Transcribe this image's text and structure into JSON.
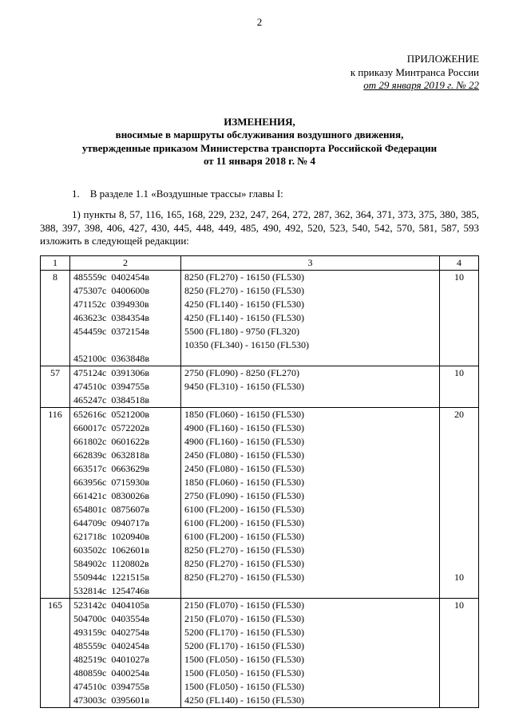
{
  "pageNumber": "2",
  "appendix": {
    "title": "ПРИЛОЖЕНИЕ",
    "sub": "к приказу Минтранса России",
    "dateLine": "от 29 января 2019 г. № 22"
  },
  "mainTitle": {
    "t1": "ИЗМЕНЕНИЯ,",
    "t2": "вносимые в маршруты обслуживания воздушного движения,",
    "t3": "утвержденные приказом Министерства транспорта Российской Федерации",
    "t4": "от 11 января 2018 г. № 4"
  },
  "para1": "1. В разделе 1.1 «Воздушные трассы» главы I:",
  "para2": "1) пункты 8, 57, 116, 165, 168, 229, 232, 247, 264, 272, 287, 362, 364, 371, 373, 375, 380, 385, 388, 397, 398, 406, 427, 430, 445, 448, 449, 485, 490, 492, 520, 523, 540, 542, 570, 581, 587, 593 изложить в следующей редакции:",
  "tableHeader": [
    "1",
    "2",
    "3",
    "4"
  ],
  "groups": [
    {
      "id": "8",
      "c4": "10",
      "rows": [
        {
          "c2": "485559с  0402454в",
          "c3": "8250 (FL270) - 16150 (FL530)"
        },
        {
          "c2": "475307с  0400600в",
          "c3": "8250 (FL270) - 16150 (FL530)"
        },
        {
          "c2": "471152с  0394930в",
          "c3": "4250 (FL140) - 16150 (FL530)"
        },
        {
          "c2": "463623с  0384354в",
          "c3": "4250 (FL140) - 16150 (FL530)"
        },
        {
          "c2": "454459с  0372154в",
          "c3": "5500 (FL180) - 9750 (FL320)"
        },
        {
          "c2": "",
          "c3": "10350 (FL340) - 16150 (FL530)"
        },
        {
          "c2": "452100с  0363848в",
          "c3": ""
        }
      ]
    },
    {
      "id": "57",
      "c4": "10",
      "rows": [
        {
          "c2": "475124с  0391306в",
          "c3": "2750 (FL090) - 8250 (FL270)"
        },
        {
          "c2": "474510с  0394755в",
          "c3": "9450 (FL310) - 16150 (FL530)"
        },
        {
          "c2": "465247с  0384518в",
          "c3": ""
        }
      ]
    },
    {
      "id": "116",
      "c4": "20",
      "rows": [
        {
          "c2": "652616с  0521200в",
          "c3": "1850 (FL060) - 16150 (FL530)"
        },
        {
          "c2": "660017с  0572202в",
          "c3": "4900 (FL160) - 16150 (FL530)"
        },
        {
          "c2": "661802с  0601622в",
          "c3": "4900 (FL160) - 16150 (FL530)"
        },
        {
          "c2": "662839с  0632818в",
          "c3": "2450 (FL080) - 16150 (FL530)"
        },
        {
          "c2": "663517с  0663629в",
          "c3": "2450 (FL080) - 16150 (FL530)"
        },
        {
          "c2": "663956с  0715930в",
          "c3": "1850 (FL060) - 16150 (FL530)"
        },
        {
          "c2": "661421с  0830026в",
          "c3": "2750 (FL090) - 16150 (FL530)"
        },
        {
          "c2": "654801с  0875607в",
          "c3": "6100 (FL200) - 16150 (FL530)"
        },
        {
          "c2": "644709с  0940717в",
          "c3": "6100 (FL200) - 16150 (FL530)"
        },
        {
          "c2": "621718с  1020940в",
          "c3": "6100 (FL200) - 16150 (FL530)"
        },
        {
          "c2": "603502с  1062601в",
          "c3": "8250 (FL270) - 16150 (FL530)"
        },
        {
          "c2": "584902с  1120802в",
          "c3": "8250 (FL270) - 16150 (FL530)"
        },
        {
          "c2": "550944с  1221515в",
          "c3": "8250 (FL270) - 16150 (FL530)",
          "c4": "10"
        },
        {
          "c2": "532814с  1254746в",
          "c3": ""
        }
      ]
    },
    {
      "id": "165",
      "c4": "10",
      "rows": [
        {
          "c2": "523142с  0404105в",
          "c3": "2150 (FL070) - 16150 (FL530)"
        },
        {
          "c2": "504700с  0403554в",
          "c3": "2150 (FL070) - 16150 (FL530)"
        },
        {
          "c2": "493159с  0402754в",
          "c3": "5200 (FL170) - 16150 (FL530)"
        },
        {
          "c2": "485559с  0402454в",
          "c3": "5200 (FL170) - 16150 (FL530)"
        },
        {
          "c2": "482519с  0401027в",
          "c3": "1500 (FL050) - 16150 (FL530)"
        },
        {
          "c2": "480859с  0400254в",
          "c3": "1500 (FL050) - 16150 (FL530)"
        },
        {
          "c2": "474510с  0394755в",
          "c3": "1500 (FL050) - 16150 (FL530)"
        },
        {
          "c2": "473003с  0395601в",
          "c3": "4250 (FL140) - 16150 (FL530)"
        }
      ]
    }
  ]
}
